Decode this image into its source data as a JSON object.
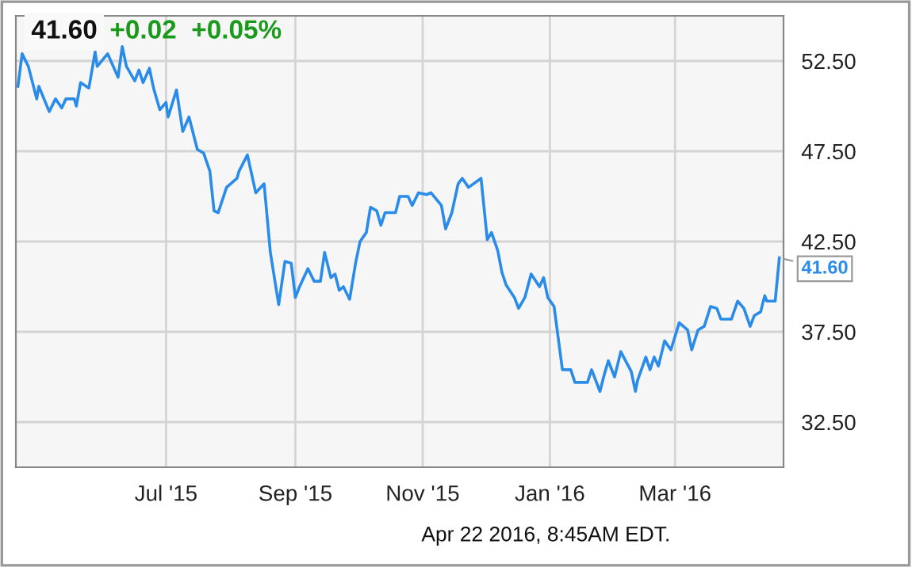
{
  "chart_data": {
    "type": "line",
    "title": "41.60",
    "subtitle": "+0.02  +0.05%",
    "annotations": [
      "Apr 22 2016, 8:45AM EDT."
    ],
    "x": [
      "2015-04-21",
      "2015-04-23",
      "2015-04-26",
      "2015-04-30",
      "2015-05-01",
      "2015-05-06",
      "2015-05-09",
      "2015-05-12",
      "2015-05-14",
      "2015-05-18",
      "2015-05-19",
      "2015-05-21",
      "2015-05-25",
      "2015-05-28",
      "2015-05-29",
      "2015-06-03",
      "2015-06-08",
      "2015-06-10",
      "2015-06-12",
      "2015-06-16",
      "2015-06-18",
      "2015-06-20",
      "2015-06-23",
      "2015-06-25",
      "2015-06-28",
      "2015-07-01",
      "2015-07-02",
      "2015-07-06",
      "2015-07-09",
      "2015-07-12",
      "2015-07-16",
      "2015-07-19",
      "2015-07-22",
      "2015-07-24",
      "2015-07-26",
      "2015-07-30",
      "2015-08-04",
      "2015-08-05",
      "2015-08-09",
      "2015-08-13",
      "2015-08-17",
      "2015-08-20",
      "2015-08-24",
      "2015-08-27",
      "2015-08-30",
      "2015-09-01",
      "2015-09-03",
      "2015-09-07",
      "2015-09-10",
      "2015-09-13",
      "2015-09-15",
      "2015-09-18",
      "2015-09-20",
      "2015-09-22",
      "2015-09-24",
      "2015-09-27",
      "2015-09-30",
      "2015-10-02",
      "2015-10-05",
      "2015-10-07",
      "2015-10-10",
      "2015-10-12",
      "2015-10-14",
      "2015-10-19",
      "2015-10-21",
      "2015-10-25",
      "2015-10-27",
      "2015-10-30",
      "2015-11-03",
      "2015-11-05",
      "2015-11-10",
      "2015-11-12",
      "2015-11-15",
      "2015-11-18",
      "2015-11-20",
      "2015-11-23",
      "2015-11-29",
      "2015-12-02",
      "2015-12-04",
      "2015-12-07",
      "2015-12-09",
      "2015-12-11",
      "2015-12-15",
      "2015-12-17",
      "2015-12-20",
      "2015-12-23",
      "2015-12-27",
      "2015-12-29",
      "2015-12-31",
      "2016-01-03",
      "2016-01-07",
      "2016-01-11",
      "2016-01-13",
      "2016-01-19",
      "2016-01-21",
      "2016-01-25",
      "2016-01-27",
      "2016-01-29",
      "2016-02-01",
      "2016-02-04",
      "2016-02-09",
      "2016-02-11",
      "2016-02-12",
      "2016-02-16",
      "2016-02-18",
      "2016-02-20",
      "2016-02-22",
      "2016-02-25",
      "2016-02-28",
      "2016-03-03",
      "2016-03-07",
      "2016-03-09",
      "2016-03-12",
      "2016-03-15",
      "2016-03-18",
      "2016-03-21",
      "2016-03-23",
      "2016-03-28",
      "2016-03-31",
      "2016-04-03",
      "2016-04-06",
      "2016-04-08",
      "2016-04-11",
      "2016-04-13",
      "2016-04-14",
      "2016-04-18",
      "2016-04-20"
    ],
    "series": [
      {
        "color": "#2a8ce8",
        "values": [
          51.1,
          52.9,
          52.2,
          50.4,
          51.1,
          49.7,
          50.4,
          49.9,
          50.4,
          50.4,
          50.0,
          51.3,
          51.0,
          53.0,
          52.2,
          52.9,
          51.6,
          53.3,
          52.2,
          51.4,
          52.0,
          51.3,
          52.1,
          51.0,
          49.8,
          50.2,
          49.4,
          50.9,
          48.6,
          49.4,
          47.6,
          47.4,
          46.4,
          44.2,
          44.1,
          45.5,
          46.0,
          46.4,
          47.3,
          45.2,
          45.7,
          41.9,
          39.0,
          41.4,
          41.3,
          39.4,
          40.0,
          41.0,
          40.3,
          40.3,
          41.9,
          40.5,
          40.7,
          39.8,
          40.0,
          39.3,
          41.4,
          42.5,
          43.0,
          44.4,
          44.2,
          43.4,
          44.1,
          44.1,
          45.0,
          45.0,
          44.5,
          45.2,
          45.1,
          45.2,
          44.5,
          43.2,
          44.1,
          45.7,
          46.0,
          45.5,
          46.0,
          42.6,
          43.0,
          42.0,
          40.8,
          40.1,
          39.4,
          38.8,
          39.4,
          40.7,
          40.0,
          40.5,
          39.4,
          38.9,
          35.4,
          35.4,
          34.7,
          34.7,
          35.4,
          34.2,
          35.1,
          35.9,
          35.0,
          36.4,
          35.3,
          34.2,
          34.8,
          36.1,
          35.4,
          36.1,
          35.6,
          37.0,
          36.5,
          38.0,
          37.6,
          36.5,
          37.6,
          37.8,
          38.9,
          38.8,
          38.2,
          38.2,
          39.2,
          38.8,
          37.8,
          38.4,
          38.6,
          39.5,
          39.2,
          39.2,
          41.6
        ],
        "value_labels": [
          null,
          null,
          null,
          null,
          null,
          null,
          null,
          null,
          null,
          null,
          null,
          null,
          null,
          null,
          null,
          null,
          null,
          null,
          null,
          null,
          null,
          null,
          null,
          null,
          null,
          null,
          null,
          null,
          null,
          null,
          null,
          null,
          null,
          null,
          null,
          null,
          null,
          null,
          null,
          null,
          null,
          null,
          null,
          null,
          null,
          null,
          null,
          null,
          null,
          null,
          null,
          null,
          null,
          null,
          null,
          null,
          null,
          null,
          null,
          null,
          null,
          null,
          null,
          null,
          null,
          null,
          null,
          null,
          null,
          null,
          null,
          null,
          null,
          null,
          null,
          null,
          null,
          null,
          null,
          null,
          null,
          null,
          null,
          null,
          null,
          null,
          null,
          null,
          null,
          null,
          null,
          null,
          null,
          null,
          null,
          null,
          null,
          null,
          null,
          null,
          null,
          null,
          null,
          null,
          null,
          null,
          null,
          null,
          null,
          null,
          null,
          null,
          null,
          null,
          null,
          null,
          null,
          null,
          null,
          null,
          null,
          null,
          null,
          null,
          null,
          null,
          "41.60"
        ]
      }
    ],
    "xlim": [
      "2015-04-20",
      "2016-04-22"
    ],
    "xticks": [
      {
        "value": "2015-07-01",
        "label": "Jul '15"
      },
      {
        "value": "2015-09-01",
        "label": "Sep '15"
      },
      {
        "value": "2015-11-01",
        "label": "Nov '15"
      },
      {
        "value": "2016-01-01",
        "label": "Jan '16"
      },
      {
        "value": "2016-03-01",
        "label": "Mar '16"
      }
    ],
    "ylim": [
      30,
      55
    ],
    "yticks": [
      {
        "value": 32.5,
        "label": "32.50"
      },
      {
        "value": 37.5,
        "label": "37.50"
      },
      {
        "value": 42.5,
        "label": "42.50"
      },
      {
        "value": 47.5,
        "label": "47.50"
      },
      {
        "value": 52.5,
        "label": "52.50"
      }
    ],
    "grid": true,
    "legend": false,
    "marker": "none",
    "line_style": "solid"
  }
}
